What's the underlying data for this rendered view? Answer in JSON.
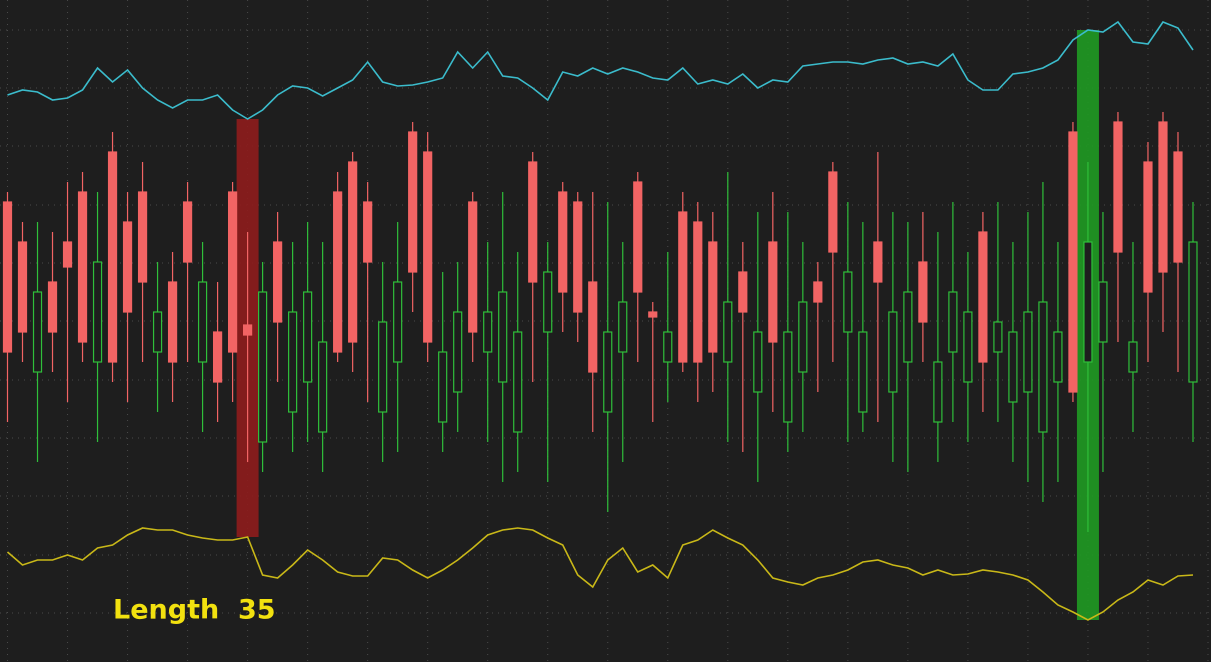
{
  "chart_data": {
    "type": "candlestick",
    "annotation": "Length  35",
    "xlim": [
      -0.5,
      80.2
    ],
    "ylim": [
      0,
      662
    ],
    "yticks": [
      632,
      574,
      516,
      457,
      399,
      341,
      282,
      224,
      166,
      107,
      49
    ],
    "xticks": [
      0,
      4,
      8,
      12,
      16,
      20,
      24,
      28,
      32,
      36,
      40,
      44,
      48,
      52,
      56,
      60,
      64,
      68,
      72,
      76,
      80
    ],
    "grid": true,
    "up_color": "#2fbf3a",
    "down_color": "#f26464",
    "ohlc": [
      [
        460,
        470,
        240,
        310
      ],
      [
        420,
        440,
        300,
        330
      ],
      [
        290,
        440,
        200,
        370
      ],
      [
        380,
        430,
        290,
        330
      ],
      [
        420,
        480,
        260,
        395
      ],
      [
        470,
        490,
        300,
        320
      ],
      [
        300,
        470,
        220,
        400
      ],
      [
        510,
        530,
        280,
        300
      ],
      [
        440,
        470,
        260,
        350
      ],
      [
        470,
        500,
        300,
        380
      ],
      [
        310,
        400,
        250,
        350
      ],
      [
        380,
        410,
        260,
        300
      ],
      [
        460,
        480,
        300,
        400
      ],
      [
        300,
        420,
        230,
        380
      ],
      [
        330,
        380,
        240,
        280
      ],
      [
        470,
        480,
        260,
        310
      ],
      [
        337,
        430,
        200,
        327
      ],
      [
        220,
        400,
        190,
        370
      ],
      [
        420,
        450,
        280,
        340
      ],
      [
        250,
        420,
        210,
        350
      ],
      [
        280,
        440,
        220,
        370
      ],
      [
        230,
        420,
        190,
        320
      ],
      [
        470,
        490,
        300,
        310
      ],
      [
        500,
        510,
        290,
        320
      ],
      [
        460,
        480,
        260,
        400
      ],
      [
        250,
        400,
        200,
        340
      ],
      [
        300,
        440,
        210,
        380
      ],
      [
        530,
        540,
        350,
        390
      ],
      [
        510,
        530,
        300,
        320
      ],
      [
        240,
        390,
        210,
        310
      ],
      [
        270,
        400,
        230,
        350
      ],
      [
        460,
        470,
        300,
        330
      ],
      [
        310,
        420,
        220,
        350
      ],
      [
        280,
        470,
        180,
        370
      ],
      [
        230,
        410,
        190,
        330
      ],
      [
        500,
        510,
        280,
        380
      ],
      [
        330,
        420,
        180,
        390
      ],
      [
        470,
        480,
        330,
        370
      ],
      [
        460,
        470,
        320,
        350
      ],
      [
        380,
        470,
        230,
        290
      ],
      [
        250,
        460,
        150,
        330
      ],
      [
        310,
        420,
        200,
        360
      ],
      [
        480,
        490,
        300,
        370
      ],
      [
        350,
        360,
        240,
        345
      ],
      [
        300,
        410,
        260,
        330
      ],
      [
        450,
        470,
        290,
        300
      ],
      [
        440,
        460,
        260,
        300
      ],
      [
        420,
        450,
        270,
        310
      ],
      [
        300,
        490,
        220,
        360
      ],
      [
        390,
        420,
        210,
        350
      ],
      [
        270,
        450,
        180,
        330
      ],
      [
        420,
        470,
        250,
        320
      ],
      [
        240,
        450,
        210,
        330
      ],
      [
        290,
        420,
        230,
        360
      ],
      [
        380,
        400,
        270,
        360
      ],
      [
        490,
        500,
        300,
        410
      ],
      [
        330,
        460,
        220,
        390
      ],
      [
        250,
        440,
        230,
        330
      ],
      [
        420,
        510,
        240,
        380
      ],
      [
        270,
        450,
        200,
        350
      ],
      [
        300,
        440,
        190,
        370
      ],
      [
        400,
        450,
        300,
        340
      ],
      [
        240,
        430,
        200,
        300
      ],
      [
        310,
        460,
        240,
        370
      ],
      [
        280,
        410,
        220,
        350
      ],
      [
        430,
        450,
        250,
        300
      ],
      [
        310,
        460,
        240,
        340
      ],
      [
        260,
        420,
        200,
        330
      ],
      [
        270,
        450,
        180,
        350
      ],
      [
        230,
        480,
        160,
        360
      ],
      [
        280,
        420,
        180,
        330
      ],
      [
        530,
        540,
        260,
        270
      ],
      [
        300,
        500,
        130,
        420
      ],
      [
        320,
        450,
        190,
        380
      ],
      [
        540,
        550,
        320,
        410
      ],
      [
        290,
        420,
        230,
        320
      ],
      [
        500,
        520,
        300,
        370
      ],
      [
        540,
        550,
        330,
        390
      ],
      [
        510,
        530,
        290,
        400
      ],
      [
        280,
        460,
        220,
        420
      ]
    ],
    "series": [
      {
        "color": "#3bbccc",
        "values": [
          567,
          572,
          570,
          562,
          564,
          572,
          594,
          580,
          592,
          574,
          562,
          554,
          562,
          562,
          567,
          552,
          543,
          552,
          567,
          576,
          574,
          566,
          574,
          582,
          600,
          580,
          576,
          577,
          580,
          584,
          610,
          594,
          610,
          586,
          584,
          574,
          562,
          590,
          586,
          594,
          588,
          594,
          590,
          584,
          582,
          594,
          578,
          582,
          578,
          588,
          574,
          582,
          580,
          596,
          598,
          600,
          600,
          598,
          602,
          604,
          598,
          600,
          596,
          608,
          582,
          572,
          572,
          588,
          590,
          594,
          602,
          622,
          632,
          630,
          640,
          620,
          618,
          640,
          634,
          612
        ]
      },
      {
        "color": "#c9b818",
        "values": [
          110,
          97,
          102,
          102,
          107,
          102,
          114,
          117,
          127,
          134,
          132,
          132,
          127,
          124,
          122,
          122,
          125,
          87,
          84,
          97,
          112,
          102,
          90,
          86,
          86,
          104,
          102,
          92,
          84,
          92,
          102,
          114,
          127,
          132,
          134,
          132,
          124,
          117,
          87,
          75,
          102,
          114,
          90,
          97,
          84,
          117,
          122,
          132,
          124,
          117,
          102,
          84,
          80,
          77,
          84,
          87,
          92,
          100,
          102,
          97,
          94,
          87,
          92,
          87,
          88,
          92,
          90,
          87,
          82,
          70,
          57,
          50,
          42,
          50,
          62,
          70,
          82,
          77,
          86,
          87
        ]
      }
    ],
    "highlights": [
      {
        "index": 16,
        "color": "#8e1c1c"
      },
      {
        "index": 72,
        "color": "#1f9a22"
      }
    ]
  }
}
